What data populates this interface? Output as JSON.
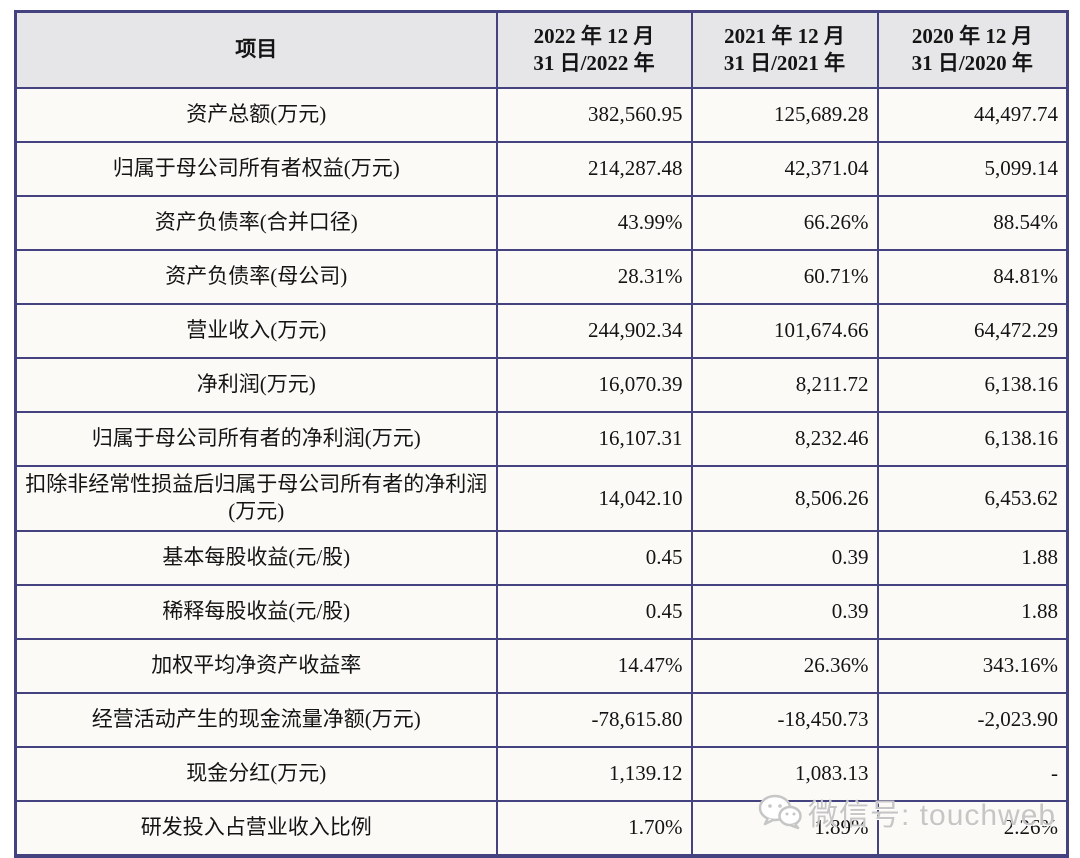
{
  "table": {
    "header": {
      "item_label": "项目",
      "periods": [
        {
          "line1": "2022 年 12 月",
          "line2": "31 日/2022 年"
        },
        {
          "line1": "2021 年 12 月",
          "line2": "31 日/2021 年"
        },
        {
          "line1": "2020 年 12 月",
          "line2": "31 日/2020 年"
        }
      ]
    },
    "rows": [
      {
        "label": "资产总额(万元)",
        "values": [
          "382,560.95",
          "125,689.28",
          "44,497.74"
        ]
      },
      {
        "label": "归属于母公司所有者权益(万元)",
        "values": [
          "214,287.48",
          "42,371.04",
          "5,099.14"
        ]
      },
      {
        "label": "资产负债率(合并口径)",
        "values": [
          "43.99%",
          "66.26%",
          "88.54%"
        ]
      },
      {
        "label": "资产负债率(母公司)",
        "values": [
          "28.31%",
          "60.71%",
          "84.81%"
        ]
      },
      {
        "label": "营业收入(万元)",
        "values": [
          "244,902.34",
          "101,674.66",
          "64,472.29"
        ]
      },
      {
        "label": "净利润(万元)",
        "values": [
          "16,070.39",
          "8,211.72",
          "6,138.16"
        ]
      },
      {
        "label": "归属于母公司所有者的净利润(万元)",
        "values": [
          "16,107.31",
          "8,232.46",
          "6,138.16"
        ]
      },
      {
        "label": "扣除非经常性损益后归属于母公司所有者的净利润(万元)",
        "values": [
          "14,042.10",
          "8,506.26",
          "6,453.62"
        ]
      },
      {
        "label": "基本每股收益(元/股)",
        "values": [
          "0.45",
          "0.39",
          "1.88"
        ]
      },
      {
        "label": "稀释每股收益(元/股)",
        "values": [
          "0.45",
          "0.39",
          "1.88"
        ]
      },
      {
        "label": "加权平均净资产收益率",
        "values": [
          "14.47%",
          "26.36%",
          "343.16%"
        ]
      },
      {
        "label": "经营活动产生的现金流量净额(万元)",
        "values": [
          "-78,615.80",
          "-18,450.73",
          "-2,023.90"
        ]
      },
      {
        "label": "现金分红(万元)",
        "values": [
          "1,139.12",
          "1,083.13",
          "-"
        ]
      },
      {
        "label": "研发投入占营业收入比例",
        "values": [
          "1.70%",
          "1.89%",
          "2.26%"
        ]
      }
    ]
  },
  "watermark": {
    "icon": "wechat-icon",
    "text": "微信号: touchweb"
  },
  "colors": {
    "table_border": "#45437f",
    "header_background": "#e6e5e7",
    "cell_background": "#fbfaf7",
    "watermark_gray": "#c6c6c6"
  }
}
